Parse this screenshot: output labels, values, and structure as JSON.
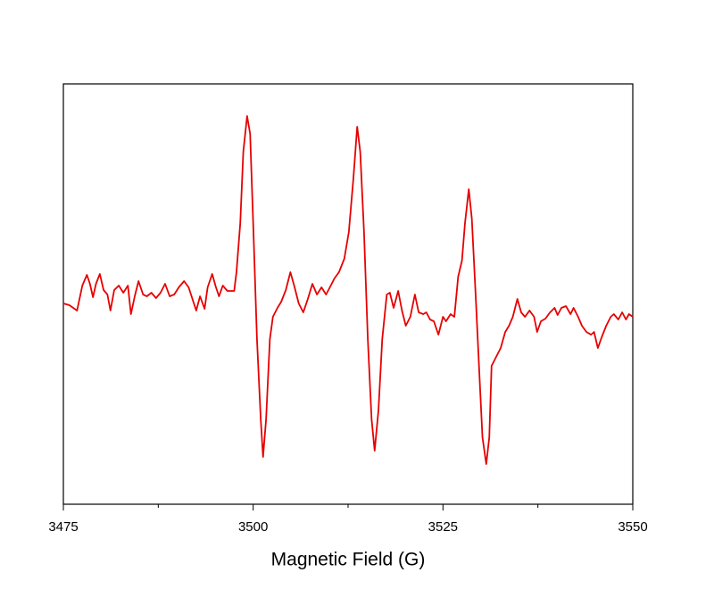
{
  "chart_data": {
    "type": "line",
    "xlabel": "Magnetic Field (G)",
    "xlim": [
      3475,
      3550
    ],
    "xticks": [
      3475,
      3500,
      3525,
      3550
    ],
    "xminor_ticks": [
      3487.5,
      3512.5,
      3537.5
    ],
    "ylim": [
      0,
      471
    ],
    "x": [
      3475.0,
      3475.8,
      3476.8,
      3477.5,
      3478.1,
      3478.5,
      3478.9,
      3479.3,
      3479.8,
      3480.3,
      3480.8,
      3481.2,
      3481.7,
      3482.3,
      3482.9,
      3483.5,
      3483.9,
      3484.4,
      3484.9,
      3485.5,
      3486.0,
      3486.6,
      3487.2,
      3487.8,
      3488.4,
      3489.0,
      3489.6,
      3490.2,
      3490.9,
      3491.5,
      3492.0,
      3492.5,
      3493.0,
      3493.6,
      3494.0,
      3494.6,
      3495.1,
      3495.5,
      3496.0,
      3496.6,
      3497.5,
      3497.8,
      3498.3,
      3498.7,
      3499.2,
      3499.6,
      3500.0,
      3500.5,
      3501.0,
      3501.3,
      3501.7,
      3502.2,
      3502.6,
      3503.2,
      3503.7,
      3504.3,
      3504.9,
      3505.4,
      3506.0,
      3506.6,
      3507.2,
      3507.8,
      3508.4,
      3509.0,
      3509.6,
      3510.1,
      3510.7,
      3511.3,
      3512.0,
      3512.6,
      3513.2,
      3513.7,
      3514.1,
      3514.6,
      3515.1,
      3515.6,
      3516.0,
      3516.5,
      3517.0,
      3517.6,
      3518.0,
      3518.5,
      3519.1,
      3519.6,
      3520.1,
      3520.7,
      3521.3,
      3521.8,
      3522.4,
      3522.8,
      3523.3,
      3523.8,
      3524.4,
      3525.0,
      3525.4,
      3526.0,
      3526.5,
      3527.0,
      3527.5,
      3527.9,
      3528.4,
      3528.8,
      3529.3,
      3529.8,
      3530.2,
      3530.7,
      3531.1,
      3531.4,
      3532.0,
      3532.6,
      3533.2,
      3533.7,
      3534.2,
      3534.8,
      3535.3,
      3535.8,
      3536.4,
      3537.0,
      3537.4,
      3537.9,
      3538.5,
      3539.1,
      3539.7,
      3540.1,
      3540.6,
      3541.2,
      3541.8,
      3542.2,
      3542.8,
      3543.3,
      3543.9,
      3544.5,
      3544.9,
      3545.4,
      3545.9,
      3546.5,
      3547.1,
      3547.5,
      3548.1,
      3548.6,
      3549.1,
      3549.5,
      3550.0
    ],
    "series": [
      {
        "color": "#e60000",
        "values": [
          225,
          223,
          217,
          245,
          257,
          247,
          232,
          247,
          258,
          240,
          235,
          217,
          240,
          245,
          237,
          245,
          213,
          233,
          250,
          235,
          233,
          237,
          231,
          237,
          247,
          233,
          235,
          243,
          250,
          243,
          230,
          217,
          233,
          219,
          243,
          258,
          243,
          233,
          245,
          239,
          239,
          260,
          315,
          395,
          435,
          415,
          315,
          185,
          95,
          53,
          95,
          185,
          210,
          220,
          227,
          240,
          260,
          245,
          225,
          215,
          230,
          247,
          235,
          243,
          235,
          243,
          253,
          260,
          275,
          305,
          365,
          423,
          395,
          305,
          185,
          95,
          60,
          105,
          185,
          235,
          237,
          220,
          239,
          217,
          200,
          210,
          235,
          215,
          213,
          215,
          207,
          205,
          190,
          210,
          205,
          213,
          210,
          255,
          273,
          315,
          353,
          320,
          235,
          145,
          75,
          45,
          75,
          155,
          165,
          175,
          193,
          200,
          210,
          230,
          215,
          210,
          217,
          210,
          193,
          205,
          208,
          215,
          220,
          212,
          220,
          222,
          213,
          220,
          210,
          200,
          193,
          190,
          193,
          175,
          187,
          200,
          210,
          213,
          207,
          215,
          207,
          213,
          210
        ]
      }
    ]
  }
}
